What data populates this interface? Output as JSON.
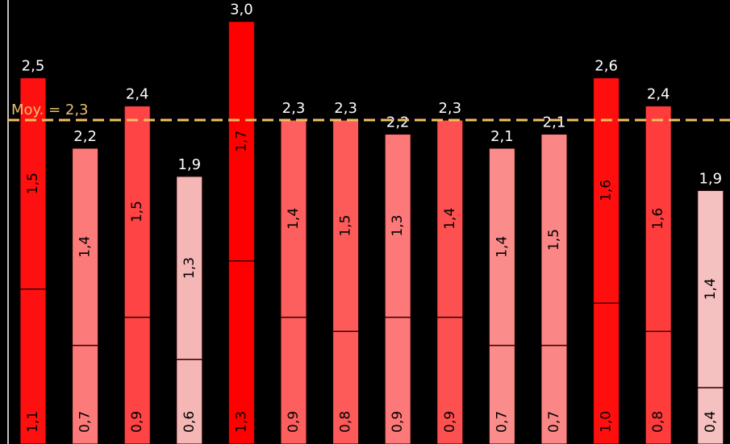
{
  "chart_data": {
    "type": "bar",
    "stacked": true,
    "orientation": "vertical",
    "bars": [
      {
        "total": "2,5",
        "bottom": 1.1,
        "top": 1.5,
        "bottom_label": "1,1",
        "top_label": "1,5",
        "color": "#ff1010"
      },
      {
        "total": "2,2",
        "bottom": 0.7,
        "top": 1.4,
        "bottom_label": "0,7",
        "top_label": "1,4",
        "color": "#fd7a7a"
      },
      {
        "total": "2,4",
        "bottom": 0.9,
        "top": 1.5,
        "bottom_label": "0,9",
        "top_label": "1,5",
        "color": "#fe4444"
      },
      {
        "total": "1,9",
        "bottom": 0.6,
        "top": 1.3,
        "bottom_label": "0,6",
        "top_label": "1,3",
        "color": "#f5b6b6"
      },
      {
        "total": "3,0",
        "bottom": 1.3,
        "top": 1.7,
        "bottom_label": "1,3",
        "top_label": "1,7",
        "color": "#ff0000"
      },
      {
        "total": "2,3",
        "bottom": 0.9,
        "top": 1.4,
        "bottom_label": "0,9",
        "top_label": "1,4",
        "color": "#fd5e5e"
      },
      {
        "total": "2,3",
        "bottom": 0.8,
        "top": 1.5,
        "bottom_label": "0,8",
        "top_label": "1,5",
        "color": "#fd5a5a"
      },
      {
        "total": "2,2",
        "bottom": 0.9,
        "top": 1.3,
        "bottom_label": "0,9",
        "top_label": "1,3",
        "color": "#fd7878"
      },
      {
        "total": "2,3",
        "bottom": 0.9,
        "top": 1.4,
        "bottom_label": "0,9",
        "top_label": "1,4",
        "color": "#fd5050"
      },
      {
        "total": "2,1",
        "bottom": 0.7,
        "top": 1.4,
        "bottom_label": "0,7",
        "top_label": "1,4",
        "color": "#fb8c8c"
      },
      {
        "total": "2,1",
        "bottom": 0.7,
        "top": 1.5,
        "bottom_label": "0,7",
        "top_label": "1,5",
        "color": "#fb8686"
      },
      {
        "total": "2,6",
        "bottom": 1.0,
        "top": 1.6,
        "bottom_label": "1,0",
        "top_label": "1,6",
        "color": "#ff0e0e"
      },
      {
        "total": "2,4",
        "bottom": 0.8,
        "top": 1.6,
        "bottom_label": "0,8",
        "top_label": "1,6",
        "color": "#fe3c3c"
      },
      {
        "total": "1,9",
        "bottom": 0.4,
        "top": 1.4,
        "bottom_label": "0,4",
        "top_label": "1,4",
        "color": "#f5c0c0"
      }
    ],
    "average": {
      "value": 2.3,
      "label": "Moy. = 2,3",
      "color": "#f0c060"
    },
    "ylim": [
      0,
      3.13
    ],
    "grid": false,
    "legend": "none"
  }
}
